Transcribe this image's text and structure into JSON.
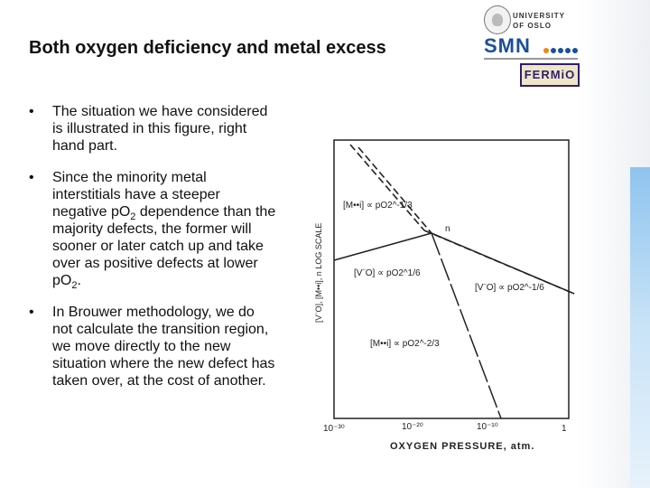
{
  "slide": {
    "title": "Both oxygen deficiency and metal excess"
  },
  "logos": {
    "university": [
      "UNIVERSITY",
      "OF OSLO"
    ],
    "smn": "SMN",
    "femtc": "FERMiO"
  },
  "bullets": [
    {
      "marker": "•",
      "text": "The situation we have considered is illustrated in this figure, right hand part."
    },
    {
      "marker": "•",
      "text_parts": {
        "a": "Since the minority metal interstitials have a steeper negative pO",
        "sub1": "2",
        "b": " dependence than the majority defects, the former will sooner or later catch up and take over as positive defects at lower pO",
        "sub2": "2",
        "c": "."
      }
    },
    {
      "marker": "•",
      "text": "In Brouwer methodology, we do not calculate the transition region, we move directly to the new situation where the new defect has taken over, at the cost of another."
    }
  ],
  "chart_data": {
    "type": "line",
    "xlabel": "OXYGEN PRESSURE, atm.",
    "ylabel": "[V¨O], [M••i], n LOG SCALE",
    "x_scale": "log",
    "x_ticks": [
      "10⁻³⁰",
      "10⁻²⁰",
      "10⁻¹⁰",
      "1"
    ],
    "xlim": [
      "10^-30",
      "1"
    ],
    "y_scale": "log",
    "series": [
      {
        "name": "n",
        "style": "dashed",
        "segments": [
          {
            "label": "[M••i] ∝ pO2^-1/3",
            "x_log": [
              -33,
              -17
            ],
            "y_rel": [
              10,
              5.5
            ]
          },
          {
            "label": "n",
            "x_log": [
              -17,
              0
            ],
            "y_rel": [
              5.5,
              0.8
            ]
          }
        ]
      },
      {
        "name": "[V¨O]",
        "style": "solid",
        "segments": [
          {
            "label": "[V¨O] ∝ pO2^1/6",
            "x_log": [
              -33,
              -17
            ],
            "y_rel": [
              2.8,
              5.5
            ]
          },
          {
            "label": "[V¨O] ∝ pO2^-1/6",
            "x_log": [
              -17,
              0
            ],
            "y_rel": [
              5.5,
              0.8
            ]
          }
        ]
      },
      {
        "name": "[M••i]",
        "style": "long-dash",
        "segments": [
          {
            "label": "[M••i] ∝ pO2^-2/3",
            "x_log": [
              -17,
              -8
            ],
            "y_rel": [
              5.5,
              -0.8
            ]
          }
        ]
      }
    ],
    "annotations": [
      "[M••i] ∝ pO2^-1/3",
      "n",
      "[V¨O] ∝ pO2^1/6",
      "[V¨O] ∝ pO2^-1/6",
      "[M••i] ∝ pO2^-2/3"
    ]
  }
}
